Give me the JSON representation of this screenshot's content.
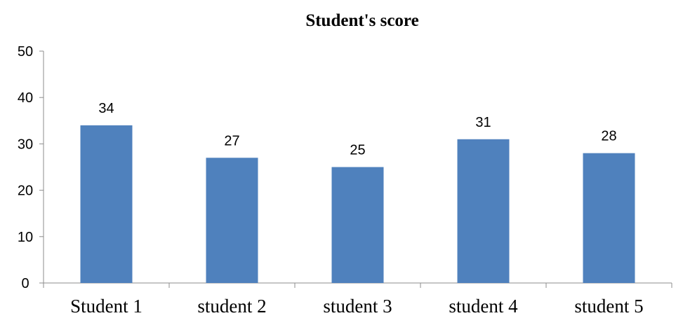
{
  "chart_data": {
    "type": "bar",
    "title": "Student's score",
    "categories": [
      "Student 1",
      "student 2",
      "student 3",
      "student 4",
      "student 5"
    ],
    "values": [
      34,
      27,
      25,
      31,
      28
    ],
    "ylim": [
      0,
      50
    ],
    "yticks": [
      0,
      10,
      20,
      30,
      40,
      50
    ],
    "xlabel": "",
    "ylabel": "",
    "grid": false,
    "legend": "none",
    "bar_color": "#4F81BD",
    "axis_color": "#8C8C8C"
  }
}
